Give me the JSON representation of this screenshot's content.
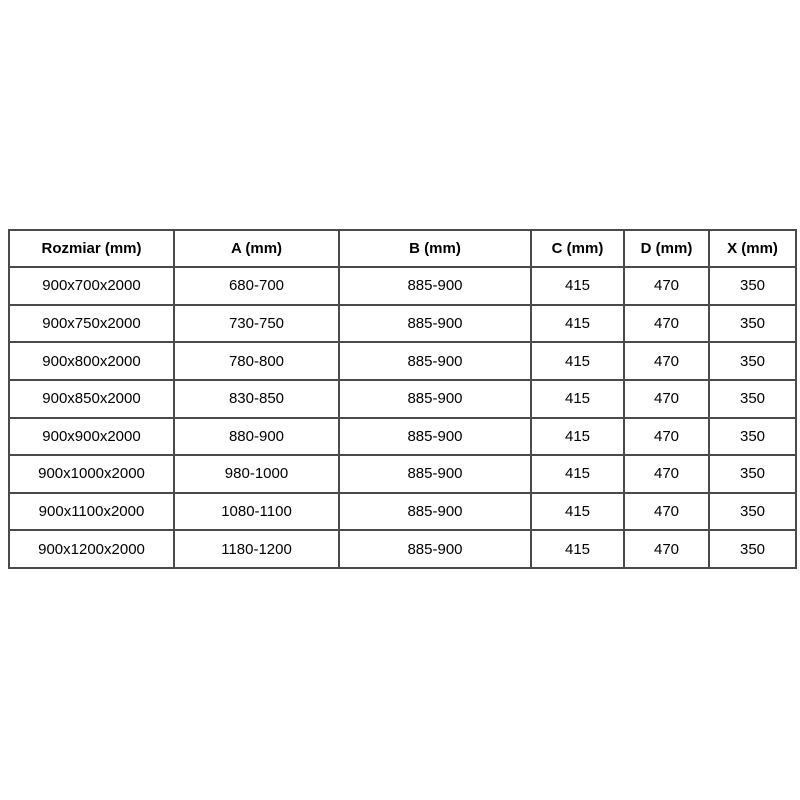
{
  "colors": {
    "background": "#ffffff",
    "table_border": "#4a4a4a",
    "text": "#000000"
  },
  "table": {
    "columns": [
      {
        "key": "rozmiar",
        "label": "Rozmiar (mm)"
      },
      {
        "key": "a",
        "label": "A (mm)"
      },
      {
        "key": "b",
        "label": "B (mm)"
      },
      {
        "key": "c",
        "label": "C (mm)"
      },
      {
        "key": "d",
        "label": "D (mm)"
      },
      {
        "key": "x",
        "label": "X (mm)"
      }
    ],
    "rows": [
      [
        "900x700x2000",
        "680-700",
        "885-900",
        "415",
        "470",
        "350"
      ],
      [
        "900x750x2000",
        "730-750",
        "885-900",
        "415",
        "470",
        "350"
      ],
      [
        "900x800x2000",
        "780-800",
        "885-900",
        "415",
        "470",
        "350"
      ],
      [
        "900x850x2000",
        "830-850",
        "885-900",
        "415",
        "470",
        "350"
      ],
      [
        "900x900x2000",
        "880-900",
        "885-900",
        "415",
        "470",
        "350"
      ],
      [
        "900x1000x2000",
        "980-1000",
        "885-900",
        "415",
        "470",
        "350"
      ],
      [
        "900x1100x2000",
        "1080-1100",
        "885-900",
        "415",
        "470",
        "350"
      ],
      [
        "900x1200x2000",
        "1180-1200",
        "885-900",
        "415",
        "470",
        "350"
      ]
    ]
  }
}
